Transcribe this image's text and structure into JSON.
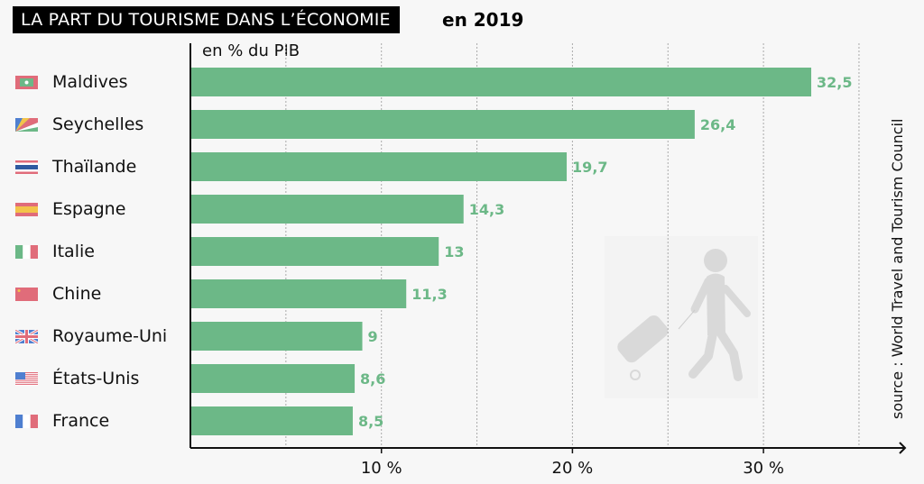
{
  "title": "LA PART DU TOURISME DANS L’ÉCONOMIE",
  "title_year": "en 2019",
  "unit_label": "en % du PIB",
  "source": "source : World Travel and Tourism Council",
  "colors": {
    "bar": "#6cb887",
    "value_label": "#6cb887",
    "axis": "#111111",
    "grid": "#aaaaaa",
    "illustration": "#d9d9d9"
  },
  "illustration": "traveler-with-suitcase-icon",
  "chart_data": {
    "type": "bar",
    "orientation": "horizontal",
    "title": "LA PART DU TOURISME DANS L’ÉCONOMIE en 2019",
    "xlabel": "en % du PIB",
    "ylabel": "",
    "xlim": [
      0,
      37
    ],
    "grid": true,
    "gridlines": [
      5,
      10,
      15,
      20,
      25,
      30,
      35
    ],
    "xticks": [
      10,
      20,
      30
    ],
    "xtick_labels": [
      "10 %",
      "20 %",
      "30 %"
    ],
    "categories": [
      "Maldives",
      "Seychelles",
      "Thaïlande",
      "Espagne",
      "Italie",
      "Chine",
      "Royaume-Uni",
      "États-Unis",
      "France"
    ],
    "values": [
      32.5,
      26.4,
      19.7,
      14.3,
      13,
      11.3,
      9,
      8.6,
      8.5
    ],
    "value_labels": [
      "32,5",
      "26,4",
      "19,7",
      "14,3",
      "13",
      "11,3",
      "9",
      "8,6",
      "8,5"
    ],
    "flags": [
      "maldives-flag-icon",
      "seychelles-flag-icon",
      "thailand-flag-icon",
      "spain-flag-icon",
      "italy-flag-icon",
      "china-flag-icon",
      "uk-flag-icon",
      "usa-flag-icon",
      "france-flag-icon"
    ]
  }
}
